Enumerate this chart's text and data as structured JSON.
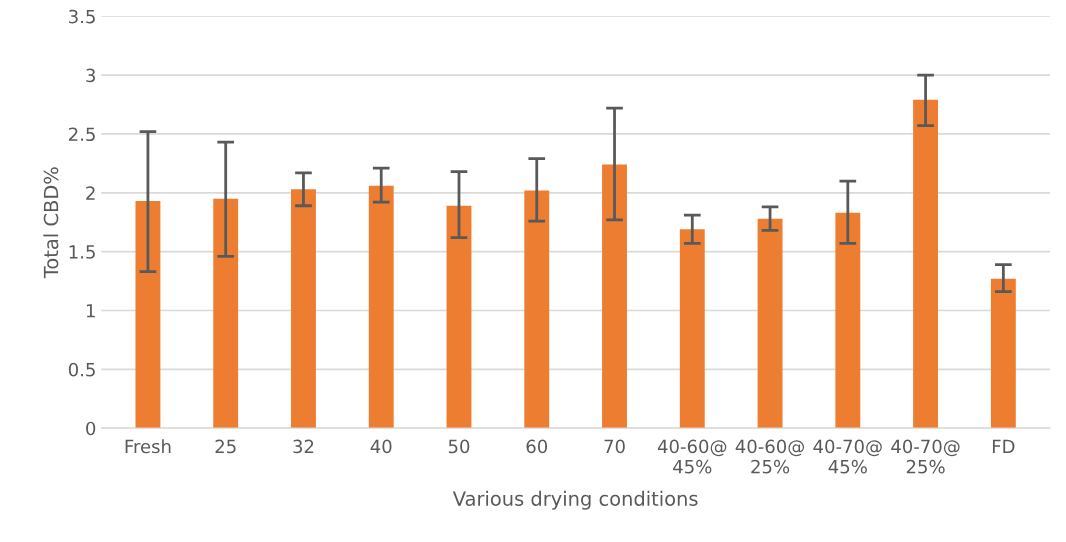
{
  "chart_data": {
    "type": "bar",
    "xlabel": "Various drying conditions",
    "ylabel": "Total CBD%",
    "categories": [
      "Fresh",
      "25",
      "32",
      "40",
      "50",
      "60",
      "70",
      "40-60@\n45%",
      "40-60@\n25%",
      "40-70@\n45%",
      "40-70@\n25%",
      "FD"
    ],
    "series": [
      {
        "color": "#ed7d31",
        "values": [
          1.93,
          1.95,
          2.03,
          2.06,
          1.89,
          2.02,
          2.24,
          1.69,
          1.78,
          1.83,
          2.79,
          1.27
        ],
        "errors": [
          [
            1.33,
            2.52
          ],
          [
            1.46,
            2.43
          ],
          [
            1.89,
            2.17
          ],
          [
            1.92,
            2.21
          ],
          [
            1.62,
            2.18
          ],
          [
            1.76,
            2.29
          ],
          [
            1.77,
            2.72
          ],
          [
            1.57,
            1.81
          ],
          [
            1.68,
            1.88
          ],
          [
            1.57,
            2.1
          ],
          [
            2.57,
            3.0
          ],
          [
            1.16,
            1.39
          ]
        ]
      }
    ],
    "ylim": [
      0,
      3.5
    ],
    "yticks": [
      0,
      0.5,
      1,
      1.5,
      2,
      2.5,
      3,
      3.5
    ],
    "grid": "y"
  }
}
